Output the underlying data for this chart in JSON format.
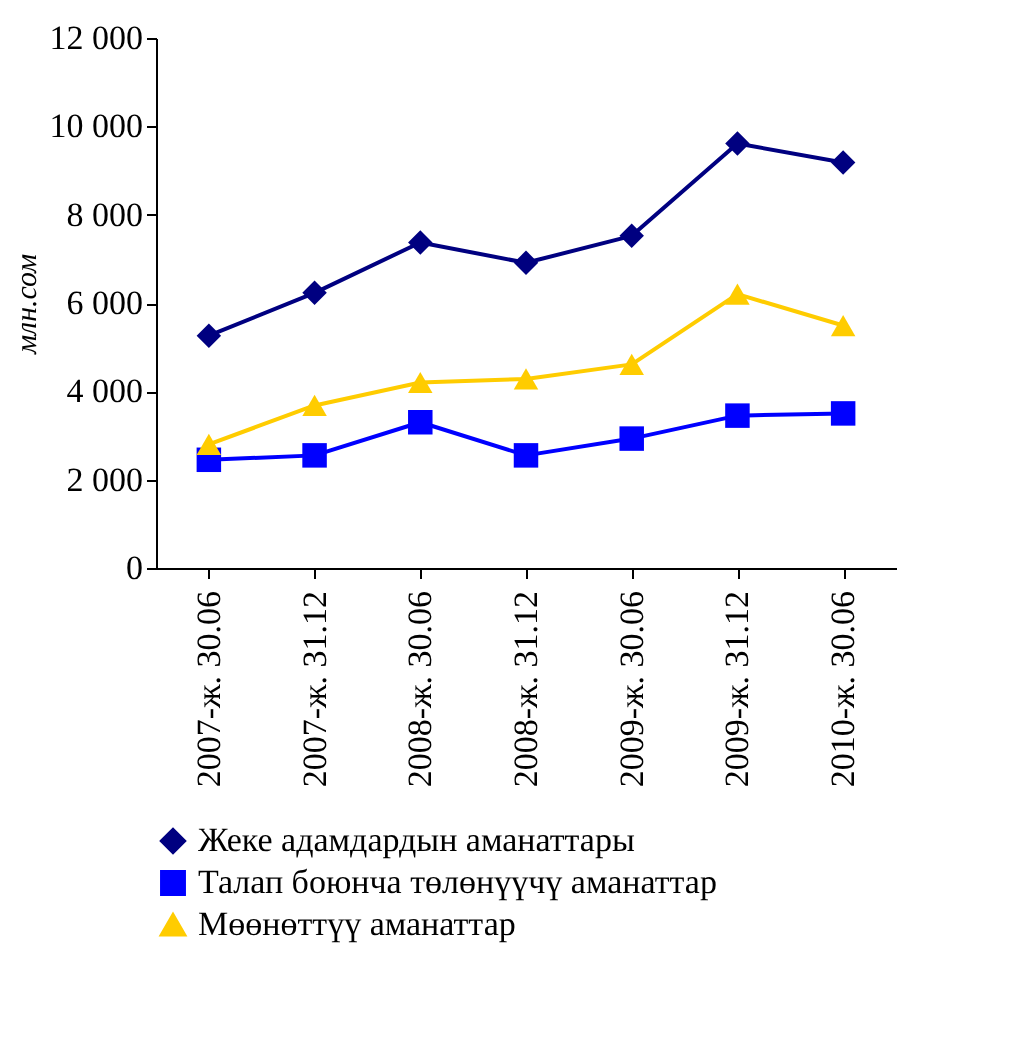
{
  "chart_data": {
    "type": "line",
    "ylabel": "млн.сом",
    "categories": [
      "2007-ж. 30.06",
      "2007-ж. 31.12",
      "2008-ж. 30.06",
      "2008-ж. 31.12",
      "2009-ж. 30.06",
      "2009-ж. 31.12",
      "2010-ж. 30.06"
    ],
    "series": [
      {
        "name": "Жеке адамдардын аманаттары",
        "color": "#000080",
        "marker": "diamond",
        "values": [
          5260,
          6230,
          7370,
          6910,
          7520,
          9610,
          9180
        ]
      },
      {
        "name": "Талап боюнча төлөнүүчү аманаттар",
        "color": "#0000ff",
        "marker": "square",
        "values": [
          2450,
          2550,
          3300,
          2550,
          2930,
          3450,
          3500
        ]
      },
      {
        "name": "Мөөнөттүү аманаттар",
        "color": "#ffcc00",
        "marker": "triangle",
        "values": [
          2800,
          3680,
          4200,
          4280,
          4610,
          6200,
          5490
        ]
      }
    ],
    "ylim": [
      0,
      12000
    ],
    "yticks": [
      0,
      {
        "value": 2000,
        "label": "2 000"
      },
      {
        "value": 4000,
        "label": "4 000"
      },
      {
        "value": 6000,
        "label": "6 000"
      },
      {
        "value": 8000,
        "label": "8 000"
      },
      {
        "value": 10000,
        "label": "10 000"
      },
      {
        "value": 12000,
        "label": "12 000"
      }
    ],
    "grid": false,
    "legend": "bottom",
    "line_style": "solid"
  }
}
